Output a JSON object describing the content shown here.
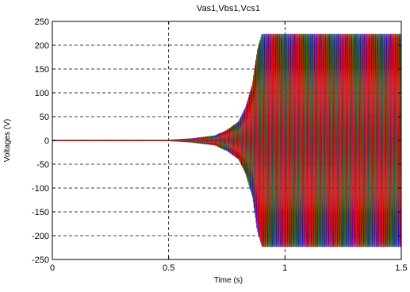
{
  "chart_data": {
    "type": "line",
    "title": "Vas1,Vbs1,Vcs1",
    "xlabel": "Time (s)",
    "ylabel": "Voltages (V)",
    "xlim": [
      0,
      1.5
    ],
    "ylim": [
      -250,
      250
    ],
    "xticks": [
      0,
      0.5,
      1,
      1.5
    ],
    "xtick_labels": [
      "0",
      "0.5",
      "1",
      "1.5"
    ],
    "yticks": [
      -250,
      -200,
      -150,
      -100,
      -50,
      0,
      50,
      100,
      150,
      200,
      250
    ],
    "ytick_labels": [
      "-250",
      "-200",
      "-150",
      "-100",
      "-50",
      "0",
      "50",
      "100",
      "150",
      "200",
      "250"
    ],
    "grid": true,
    "grid_style": "dashed",
    "series": [
      {
        "color": "#0000ff",
        "phase_deg": 0
      },
      {
        "color": "#007f00",
        "phase_deg": -120
      },
      {
        "color": "#ff0000",
        "phase_deg": 120
      }
    ],
    "envelope": {
      "x": [
        0,
        0.5,
        0.6,
        0.7,
        0.75,
        0.8,
        0.83,
        0.86,
        0.88,
        0.9,
        1.0,
        1.5
      ],
      "amplitude": [
        1,
        1,
        4,
        10,
        22,
        40,
        70,
        120,
        190,
        225,
        225,
        225
      ]
    },
    "oscillation_cycles": 160
  }
}
